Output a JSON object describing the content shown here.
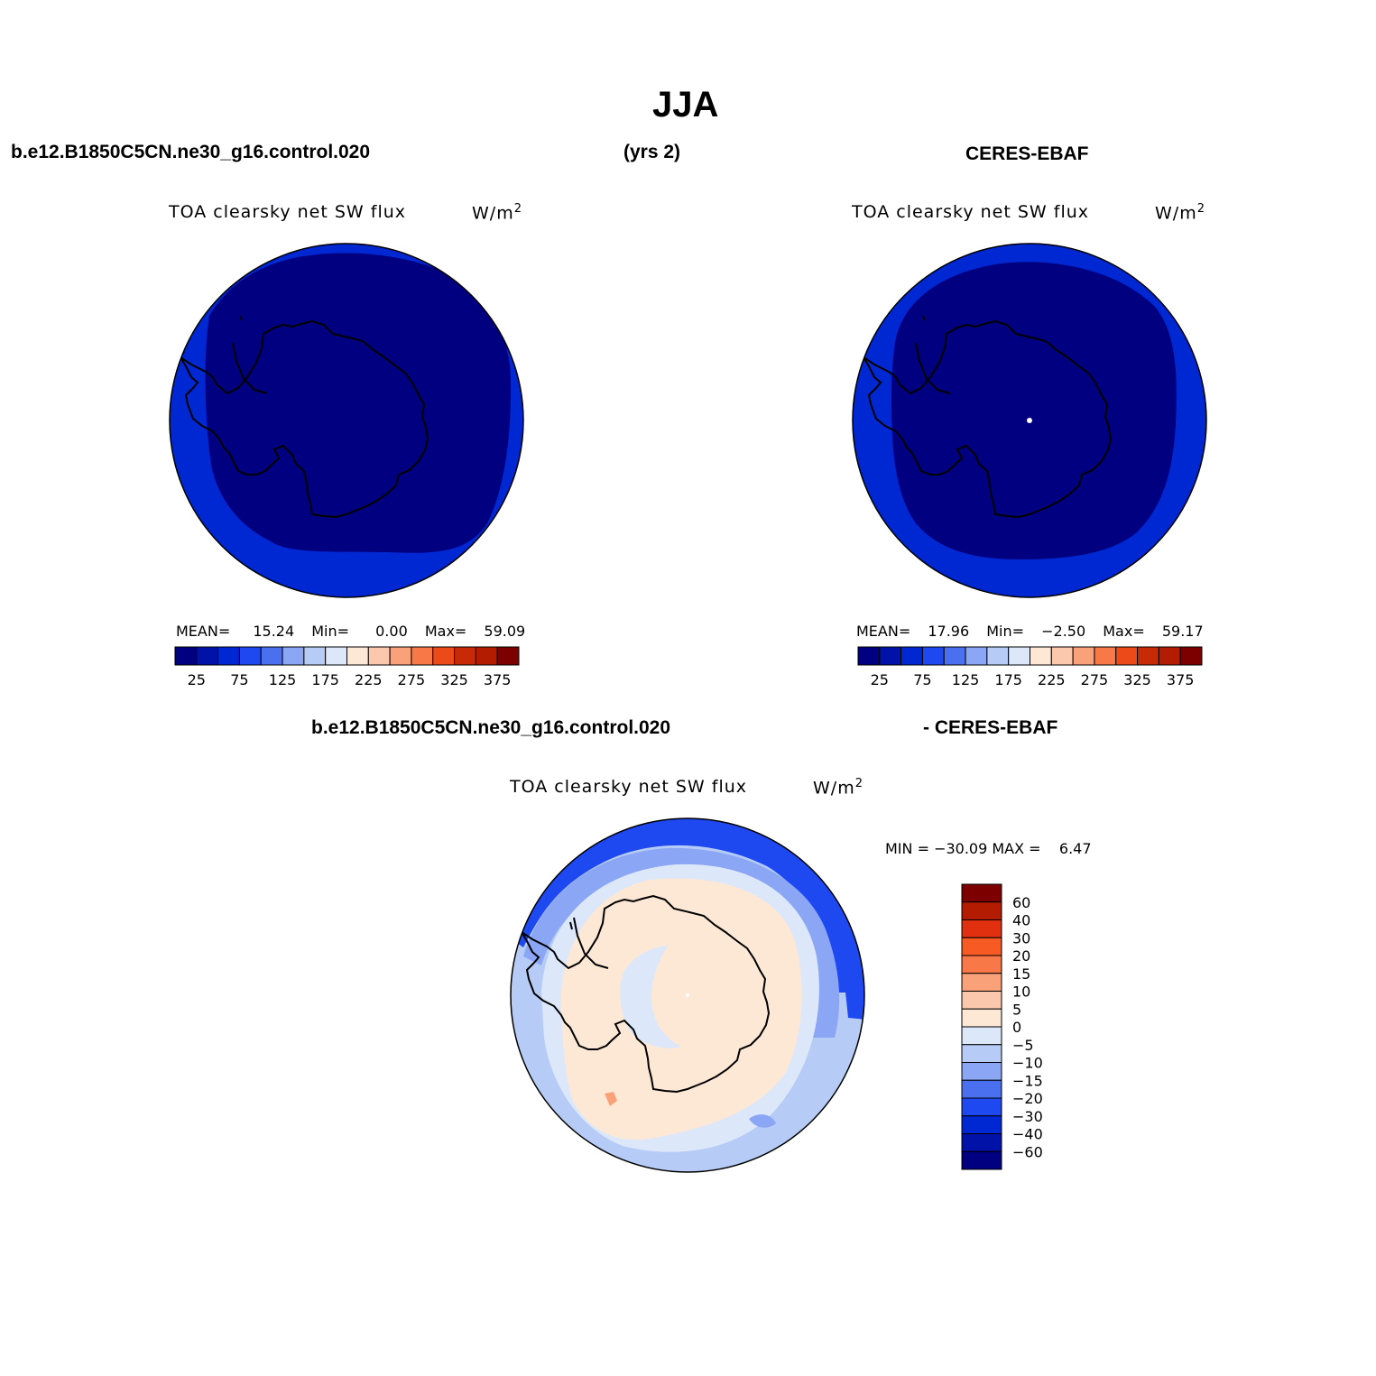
{
  "header": {
    "season": "JJA",
    "case_name": "b.e12.B1850C5CN.ne30_g16.control.020",
    "years": "(yrs 2)",
    "obs_name": "CERES-EBAF",
    "diff_case_name": "b.e12.B1850C5CN.ne30_g16.control.020",
    "diff_obs_name": "- CERES-EBAF"
  },
  "panels": [
    {
      "id": "model",
      "variable": "TOA clearsky net SW flux",
      "units": "W/m",
      "units_exp": "2",
      "stats": {
        "mean_label": "MEAN=",
        "mean": "15.24",
        "min_label": "Min=",
        "min": "0.00",
        "max_label": "Max=",
        "max": "59.09"
      }
    },
    {
      "id": "obs",
      "variable": "TOA clearsky net SW flux",
      "units": "W/m",
      "units_exp": "2",
      "stats": {
        "mean_label": "MEAN=",
        "mean": "17.96",
        "min_label": "Min=",
        "min": "−2.50",
        "max_label": "Max=",
        "max": "59.17"
      }
    }
  ],
  "diff_panel": {
    "variable": "TOA clearsky net SW flux",
    "units": "W/m",
    "units_exp": "2",
    "minmax": "MIN = −30.09 MAX =    6.47"
  },
  "colorbar_horizontal": {
    "colors": [
      "#000080",
      "#0012a8",
      "#0028d2",
      "#1e48f0",
      "#4a70f0",
      "#8aa6f4",
      "#b6ccf6",
      "#dce8fa",
      "#fde8d6",
      "#fbc8ae",
      "#f9a27a",
      "#f87848",
      "#ec4a18",
      "#c82a08",
      "#b41c00",
      "#7c0000"
    ],
    "labels": [
      "25",
      "75",
      "125",
      "175",
      "225",
      "275",
      "325",
      "375"
    ]
  },
  "colorbar_vertical": {
    "colors": [
      "#7c0000",
      "#b41c00",
      "#e03010",
      "#f85a24",
      "#f87848",
      "#f9a27a",
      "#fbc8ae",
      "#fde8d6",
      "#dce8fa",
      "#b6ccf6",
      "#8aa6f4",
      "#4a70f0",
      "#1e48f0",
      "#0028d2",
      "#0012a8",
      "#000080"
    ],
    "labels": [
      "60",
      "40",
      "30",
      "20",
      "15",
      "10",
      "5",
      "0",
      "−5",
      "−10",
      "−15",
      "−20",
      "−30",
      "−40",
      "−60"
    ]
  },
  "map_colors": {
    "outer_blue": "#0028d2",
    "deep_blue": "#000080",
    "diff_peach": "#fde8d6",
    "diff_light_blue": "#dce8fa",
    "diff_mid_blue": "#b6ccf6",
    "diff_blue": "#8aa6f4",
    "diff_strong_blue": "#1e48f0",
    "diff_orange": "#f9a27a"
  }
}
